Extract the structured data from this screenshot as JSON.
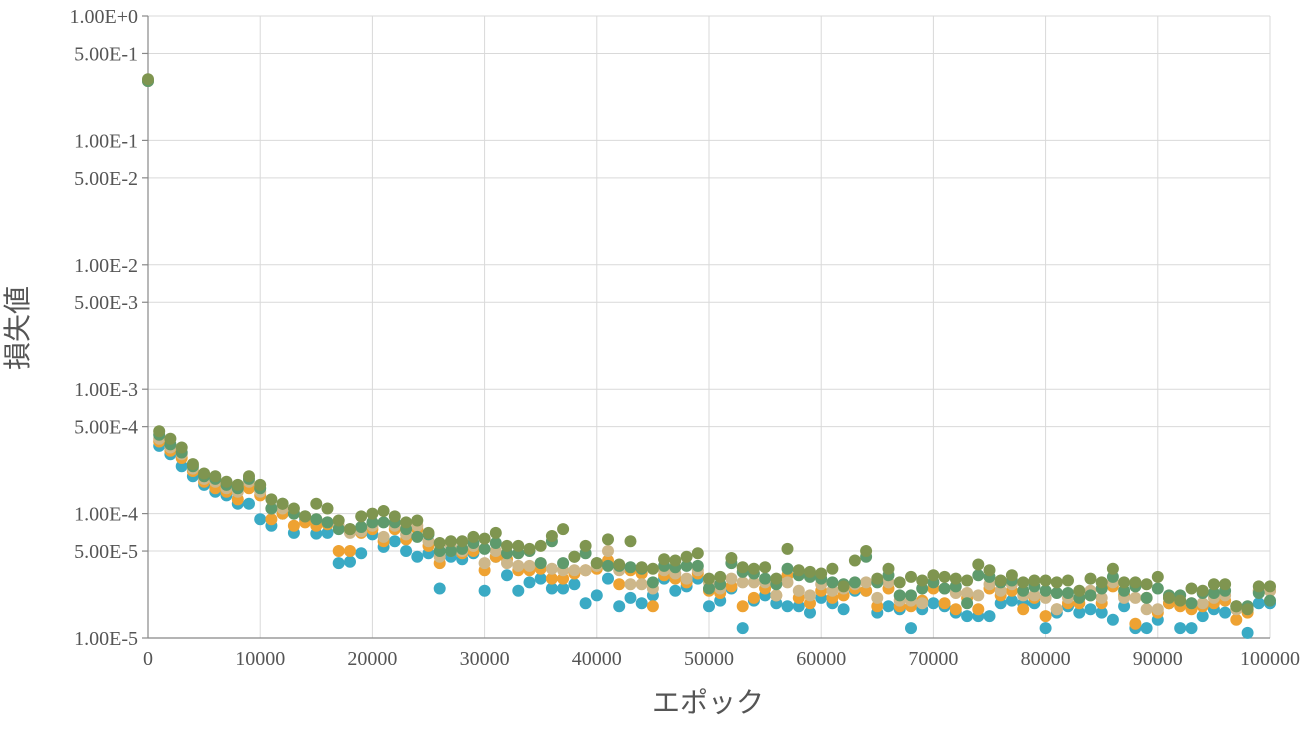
{
  "chart_data": {
    "type": "scatter",
    "title": "",
    "xlabel": "エポック",
    "ylabel": "損失値",
    "xlim": [
      0,
      100000
    ],
    "ylim": [
      1e-05,
      1
    ],
    "yscale": "log",
    "grid": true,
    "legend": "none",
    "x_ticks": [
      0,
      10000,
      20000,
      30000,
      40000,
      50000,
      60000,
      70000,
      80000,
      90000,
      100000
    ],
    "x_tick_labels": [
      "0",
      "10000",
      "20000",
      "30000",
      "40000",
      "50000",
      "60000",
      "70000",
      "80000",
      "90000",
      "100000"
    ],
    "y_ticks": [
      1,
      0.5,
      0.1,
      0.05,
      0.01,
      0.005,
      0.001,
      0.0005,
      0.0001,
      5e-05,
      1e-05
    ],
    "y_tick_labels": [
      "1.00E+0",
      "5.00E-1",
      "1.00E-1",
      "5.00E-2",
      "1.00E-2",
      "5.00E-3",
      "1.00E-3",
      "5.00E-4",
      "1.00E-4",
      "5.00E-5",
      "1.00E-5"
    ],
    "series": [
      {
        "color": "#3aaac4",
        "x": [
          0,
          1000,
          2000,
          3000,
          4000,
          5000,
          6000,
          7000,
          8000,
          9000,
          10000,
          11000,
          12000,
          13000,
          14000,
          15000,
          16000,
          17000,
          18000,
          19000,
          20000,
          21000,
          22000,
          23000,
          24000,
          25000,
          26000,
          27000,
          28000,
          29000,
          30000,
          31000,
          32000,
          33000,
          34000,
          35000,
          36000,
          37000,
          38000,
          39000,
          40000,
          41000,
          42000,
          43000,
          44000,
          45000,
          46000,
          47000,
          48000,
          49000,
          50000,
          51000,
          52000,
          53000,
          54000,
          55000,
          56000,
          57000,
          58000,
          59000,
          60000,
          61000,
          62000,
          63000,
          64000,
          65000,
          66000,
          67000,
          68000,
          69000,
          70000,
          71000,
          72000,
          73000,
          74000,
          75000,
          76000,
          77000,
          78000,
          79000,
          80000,
          81000,
          82000,
          83000,
          84000,
          85000,
          86000,
          87000,
          88000,
          89000,
          90000,
          91000,
          92000,
          93000,
          94000,
          95000,
          96000,
          97000,
          98000,
          99000,
          100000
        ],
        "y": [
          0.3,
          0.00035,
          0.0003,
          0.00024,
          0.0002,
          0.00017,
          0.00015,
          0.00014,
          0.00012,
          0.00012,
          9e-05,
          8e-05,
          0.0001,
          7e-05,
          9e-05,
          6.9e-05,
          7e-05,
          4e-05,
          4.1e-05,
          4.8e-05,
          6.8e-05,
          5.4e-05,
          6e-05,
          5e-05,
          4.5e-05,
          4.8e-05,
          2.5e-05,
          4.5e-05,
          4.3e-05,
          4.8e-05,
          2.4e-05,
          4.5e-05,
          3.2e-05,
          2.4e-05,
          2.8e-05,
          3e-05,
          2.5e-05,
          2.5e-05,
          2.7e-05,
          1.9e-05,
          2.2e-05,
          3e-05,
          1.8e-05,
          2.1e-05,
          1.9e-05,
          2.2e-05,
          3e-05,
          2.4e-05,
          2.6e-05,
          3e-05,
          1.8e-05,
          2e-05,
          2.5e-05,
          1.2e-05,
          2e-05,
          2.2e-05,
          1.9e-05,
          1.8e-05,
          1.8e-05,
          1.6e-05,
          2.1e-05,
          1.9e-05,
          1.7e-05,
          2.4e-05,
          2.4e-05,
          1.6e-05,
          1.8e-05,
          1.7e-05,
          1.2e-05,
          1.7e-05,
          1.9e-05,
          1.8e-05,
          1.6e-05,
          1.5e-05,
          1.5e-05,
          1.5e-05,
          1.9e-05,
          2e-05,
          1.9e-05,
          1.9e-05,
          1.2e-05,
          1.6e-05,
          1.8e-05,
          1.6e-05,
          1.7e-05,
          1.6e-05,
          1.4e-05,
          1.8e-05,
          1.2e-05,
          1.2e-05,
          1.4e-05,
          1.9e-05,
          1.2e-05,
          1.2e-05,
          1.5e-05,
          1.7e-05,
          1.6e-05,
          1.7e-05,
          1.1e-05,
          1.9e-05,
          1.9e-05
        ]
      },
      {
        "color": "#eea232",
        "x": [
          0,
          1000,
          2000,
          3000,
          4000,
          5000,
          6000,
          7000,
          8000,
          9000,
          10000,
          11000,
          12000,
          13000,
          14000,
          15000,
          16000,
          17000,
          18000,
          19000,
          20000,
          21000,
          22000,
          23000,
          24000,
          25000,
          26000,
          27000,
          28000,
          29000,
          30000,
          31000,
          32000,
          33000,
          34000,
          35000,
          36000,
          37000,
          38000,
          39000,
          40000,
          41000,
          42000,
          43000,
          44000,
          45000,
          46000,
          47000,
          48000,
          49000,
          50000,
          51000,
          52000,
          53000,
          54000,
          55000,
          56000,
          57000,
          58000,
          59000,
          60000,
          61000,
          62000,
          63000,
          64000,
          65000,
          66000,
          67000,
          68000,
          69000,
          70000,
          71000,
          72000,
          73000,
          74000,
          75000,
          76000,
          77000,
          78000,
          79000,
          80000,
          81000,
          82000,
          83000,
          84000,
          85000,
          86000,
          87000,
          88000,
          89000,
          90000,
          91000,
          92000,
          93000,
          94000,
          95000,
          96000,
          97000,
          98000,
          99000,
          100000
        ],
        "y": [
          0.3,
          0.00038,
          0.00032,
          0.00028,
          0.00022,
          0.00018,
          0.00016,
          0.00015,
          0.00013,
          0.00016,
          0.00014,
          9e-05,
          0.0001,
          8e-05,
          8.5e-05,
          8e-05,
          8.2e-05,
          5e-05,
          5e-05,
          7e-05,
          7.5e-05,
          6e-05,
          7.5e-05,
          6.2e-05,
          7.5e-05,
          5.5e-05,
          4e-05,
          5e-05,
          4.8e-05,
          5e-05,
          3.5e-05,
          4.5e-05,
          4.3e-05,
          3.5e-05,
          3.5e-05,
          3.6e-05,
          3e-05,
          3e-05,
          3.3e-05,
          3.5e-05,
          3.6e-05,
          4.2e-05,
          2.7e-05,
          3.5e-05,
          3.3e-05,
          1.8e-05,
          3.2e-05,
          3e-05,
          2.8e-05,
          3.3e-05,
          2.4e-05,
          2.3e-05,
          2.6e-05,
          1.8e-05,
          2.1e-05,
          2.5e-05,
          2.2e-05,
          3.2e-05,
          2.1e-05,
          1.9e-05,
          2.4e-05,
          2.1e-05,
          2.2e-05,
          2.5e-05,
          2.4e-05,
          1.8e-05,
          2.5e-05,
          1.8e-05,
          1.8e-05,
          2e-05,
          2.5e-05,
          1.9e-05,
          1.7e-05,
          2.1e-05,
          1.7e-05,
          2.5e-05,
          2.2e-05,
          2.4e-05,
          1.7e-05,
          2.1e-05,
          1.5e-05,
          1.7e-05,
          1.9e-05,
          1.9e-05,
          2.2e-05,
          1.9e-05,
          2.6e-05,
          2.2e-05,
          1.3e-05,
          2.1e-05,
          1.6e-05,
          1.9e-05,
          1.8e-05,
          1.7e-05,
          1.8e-05,
          1.9e-05,
          2e-05,
          1.4e-05,
          1.6e-05,
          2.4e-05,
          2.4e-05
        ]
      },
      {
        "color": "#cdb78a",
        "x": [
          0,
          1000,
          2000,
          3000,
          4000,
          5000,
          6000,
          7000,
          8000,
          9000,
          10000,
          11000,
          12000,
          13000,
          14000,
          15000,
          16000,
          17000,
          18000,
          19000,
          20000,
          21000,
          22000,
          23000,
          24000,
          25000,
          26000,
          27000,
          28000,
          29000,
          30000,
          31000,
          32000,
          33000,
          34000,
          35000,
          36000,
          37000,
          38000,
          39000,
          40000,
          41000,
          42000,
          43000,
          44000,
          45000,
          46000,
          47000,
          48000,
          49000,
          50000,
          51000,
          52000,
          53000,
          54000,
          55000,
          56000,
          57000,
          58000,
          59000,
          60000,
          61000,
          62000,
          63000,
          64000,
          65000,
          66000,
          67000,
          68000,
          69000,
          70000,
          71000,
          72000,
          73000,
          74000,
          75000,
          76000,
          77000,
          78000,
          79000,
          80000,
          81000,
          82000,
          83000,
          84000,
          85000,
          86000,
          87000,
          88000,
          89000,
          90000,
          91000,
          92000,
          93000,
          94000,
          95000,
          96000,
          97000,
          98000,
          99000,
          100000
        ],
        "y": [
          0.3,
          0.0004,
          0.00034,
          0.0003,
          0.00023,
          0.00019,
          0.00018,
          0.00016,
          0.00015,
          0.00018,
          0.00015,
          0.00011,
          0.00011,
          0.0001,
          9.5e-05,
          9e-05,
          8.5e-05,
          8e-05,
          7e-05,
          7.2e-05,
          8e-05,
          6.5e-05,
          8e-05,
          6.8e-05,
          8e-05,
          6e-05,
          4.5e-05,
          5.5e-05,
          5e-05,
          5.5e-05,
          4e-05,
          5e-05,
          4e-05,
          3.8e-05,
          3.8e-05,
          4e-05,
          3.6e-05,
          3.5e-05,
          3.5e-05,
          3.5e-05,
          3.8e-05,
          5e-05,
          3.5e-05,
          2.7e-05,
          2.7e-05,
          2.5e-05,
          3.5e-05,
          3.3e-05,
          3e-05,
          3.5e-05,
          2.8e-05,
          2.5e-05,
          3e-05,
          2.8e-05,
          2.8e-05,
          2.8e-05,
          2.2e-05,
          2.8e-05,
          2.4e-05,
          2.2e-05,
          2.7e-05,
          2.4e-05,
          2.5e-05,
          2.7e-05,
          2.8e-05,
          2.1e-05,
          2.8e-05,
          2e-05,
          2e-05,
          1.9e-05,
          2.8e-05,
          2.5e-05,
          2.3e-05,
          2.3e-05,
          2.2e-05,
          2.7e-05,
          2.4e-05,
          2.7e-05,
          2.2e-05,
          2.2e-05,
          2.1e-05,
          1.7e-05,
          2.1e-05,
          2.1e-05,
          2.4e-05,
          2.1e-05,
          2.8e-05,
          2.1e-05,
          2.1e-05,
          1.7e-05,
          1.7e-05,
          2.1e-05,
          2e-05,
          1.9e-05,
          1.9e-05,
          2.1e-05,
          2.2e-05,
          1.7e-05,
          1.7e-05,
          2.4e-05,
          2.4e-05
        ]
      },
      {
        "color": "#5e9a6c",
        "x": [
          0,
          1000,
          2000,
          3000,
          4000,
          5000,
          6000,
          7000,
          8000,
          9000,
          10000,
          11000,
          12000,
          13000,
          14000,
          15000,
          16000,
          17000,
          18000,
          19000,
          20000,
          21000,
          22000,
          23000,
          24000,
          25000,
          26000,
          27000,
          28000,
          29000,
          30000,
          31000,
          32000,
          33000,
          34000,
          35000,
          36000,
          37000,
          38000,
          39000,
          40000,
          41000,
          42000,
          43000,
          44000,
          45000,
          46000,
          47000,
          48000,
          49000,
          50000,
          51000,
          52000,
          53000,
          54000,
          55000,
          56000,
          57000,
          58000,
          59000,
          60000,
          61000,
          62000,
          63000,
          64000,
          65000,
          66000,
          67000,
          68000,
          69000,
          70000,
          71000,
          72000,
          73000,
          74000,
          75000,
          76000,
          77000,
          78000,
          79000,
          80000,
          81000,
          82000,
          83000,
          84000,
          85000,
          86000,
          87000,
          88000,
          89000,
          90000,
          91000,
          92000,
          93000,
          94000,
          95000,
          96000,
          97000,
          98000,
          99000,
          100000
        ],
        "y": [
          0.3,
          0.00043,
          0.00036,
          0.00031,
          0.00024,
          0.0002,
          0.00019,
          0.00017,
          0.00016,
          0.00019,
          0.00016,
          0.00011,
          0.00012,
          0.0001,
          9.5e-05,
          9e-05,
          8.5e-05,
          7.5e-05,
          7.5e-05,
          7.8e-05,
          8.5e-05,
          8.5e-05,
          8.5e-05,
          7.5e-05,
          6.5e-05,
          6.8e-05,
          5e-05,
          5e-05,
          5.2e-05,
          5.8e-05,
          5.2e-05,
          5.8e-05,
          4.8e-05,
          4.8e-05,
          5e-05,
          4e-05,
          6e-05,
          4e-05,
          4.5e-05,
          4.8e-05,
          4e-05,
          3.8e-05,
          3.8e-05,
          3.7e-05,
          3.6e-05,
          2.8e-05,
          3.8e-05,
          3.7e-05,
          3.8e-05,
          3.8e-05,
          2.5e-05,
          2.7e-05,
          4e-05,
          3.4e-05,
          3.3e-05,
          3e-05,
          2.7e-05,
          3.6e-05,
          3.2e-05,
          3.1e-05,
          3e-05,
          2.8e-05,
          2.7e-05,
          2.8e-05,
          4.5e-05,
          2.8e-05,
          3.2e-05,
          2.2e-05,
          2.2e-05,
          2.5e-05,
          2.8e-05,
          2.5e-05,
          2.6e-05,
          1.9e-05,
          3.2e-05,
          3.1e-05,
          2.8e-05,
          2.9e-05,
          2.4e-05,
          2.6e-05,
          2.4e-05,
          2.3e-05,
          2.3e-05,
          2.1e-05,
          2.2e-05,
          2.5e-05,
          3.1e-05,
          2.4e-05,
          2.6e-05,
          2.1e-05,
          2.5e-05,
          2.2e-05,
          2.2e-05,
          1.9e-05,
          2.3e-05,
          2.3e-05,
          2.4e-05,
          1.8e-05,
          1.8e-05,
          2.3e-05,
          2e-05
        ]
      },
      {
        "color": "#7f9550",
        "x": [
          0,
          1000,
          2000,
          3000,
          4000,
          5000,
          6000,
          7000,
          8000,
          9000,
          10000,
          11000,
          12000,
          13000,
          14000,
          15000,
          16000,
          17000,
          18000,
          19000,
          20000,
          21000,
          22000,
          23000,
          24000,
          25000,
          26000,
          27000,
          28000,
          29000,
          30000,
          31000,
          32000,
          33000,
          34000,
          35000,
          36000,
          37000,
          38000,
          39000,
          40000,
          41000,
          42000,
          43000,
          44000,
          45000,
          46000,
          47000,
          48000,
          49000,
          50000,
          51000,
          52000,
          53000,
          54000,
          55000,
          56000,
          57000,
          58000,
          59000,
          60000,
          61000,
          62000,
          63000,
          64000,
          65000,
          66000,
          67000,
          68000,
          69000,
          70000,
          71000,
          72000,
          73000,
          74000,
          75000,
          76000,
          77000,
          78000,
          79000,
          80000,
          81000,
          82000,
          83000,
          84000,
          85000,
          86000,
          87000,
          88000,
          89000,
          90000,
          91000,
          92000,
          93000,
          94000,
          95000,
          96000,
          97000,
          98000,
          99000,
          100000
        ],
        "y": [
          0.31,
          0.00046,
          0.0004,
          0.00034,
          0.00025,
          0.00021,
          0.0002,
          0.00018,
          0.00017,
          0.0002,
          0.00017,
          0.00013,
          0.00012,
          0.00011,
          9.5e-05,
          0.00012,
          0.00011,
          8.8e-05,
          7.5e-05,
          9.5e-05,
          0.0001,
          0.000105,
          9.5e-05,
          8.5e-05,
          8.8e-05,
          7e-05,
          5.8e-05,
          6e-05,
          6e-05,
          6.5e-05,
          6.3e-05,
          7e-05,
          5.5e-05,
          5.5e-05,
          5.2e-05,
          5.5e-05,
          6.6e-05,
          7.5e-05,
          4.5e-05,
          5.5e-05,
          4e-05,
          6.2e-05,
          3.9e-05,
          6e-05,
          3.7e-05,
          3.6e-05,
          4.3e-05,
          4.2e-05,
          4.5e-05,
          4.8e-05,
          3e-05,
          3.1e-05,
          4.4e-05,
          3.7e-05,
          3.6e-05,
          3.7e-05,
          3e-05,
          5.2e-05,
          3.5e-05,
          3.4e-05,
          3.3e-05,
          3.6e-05,
          2.6e-05,
          4.2e-05,
          5e-05,
          3e-05,
          3.6e-05,
          2.8e-05,
          3.1e-05,
          2.9e-05,
          3.2e-05,
          3.1e-05,
          3e-05,
          2.9e-05,
          3.9e-05,
          3.5e-05,
          2.9e-05,
          3.2e-05,
          2.8e-05,
          2.9e-05,
          2.9e-05,
          2.8e-05,
          2.9e-05,
          2.4e-05,
          3e-05,
          2.8e-05,
          3.6e-05,
          2.8e-05,
          2.8e-05,
          2.7e-05,
          3.1e-05,
          2.1e-05,
          2e-05,
          2.5e-05,
          2.4e-05,
          2.7e-05,
          2.7e-05,
          1.8e-05,
          1.7e-05,
          2.6e-05,
          2.6e-05
        ]
      }
    ]
  }
}
